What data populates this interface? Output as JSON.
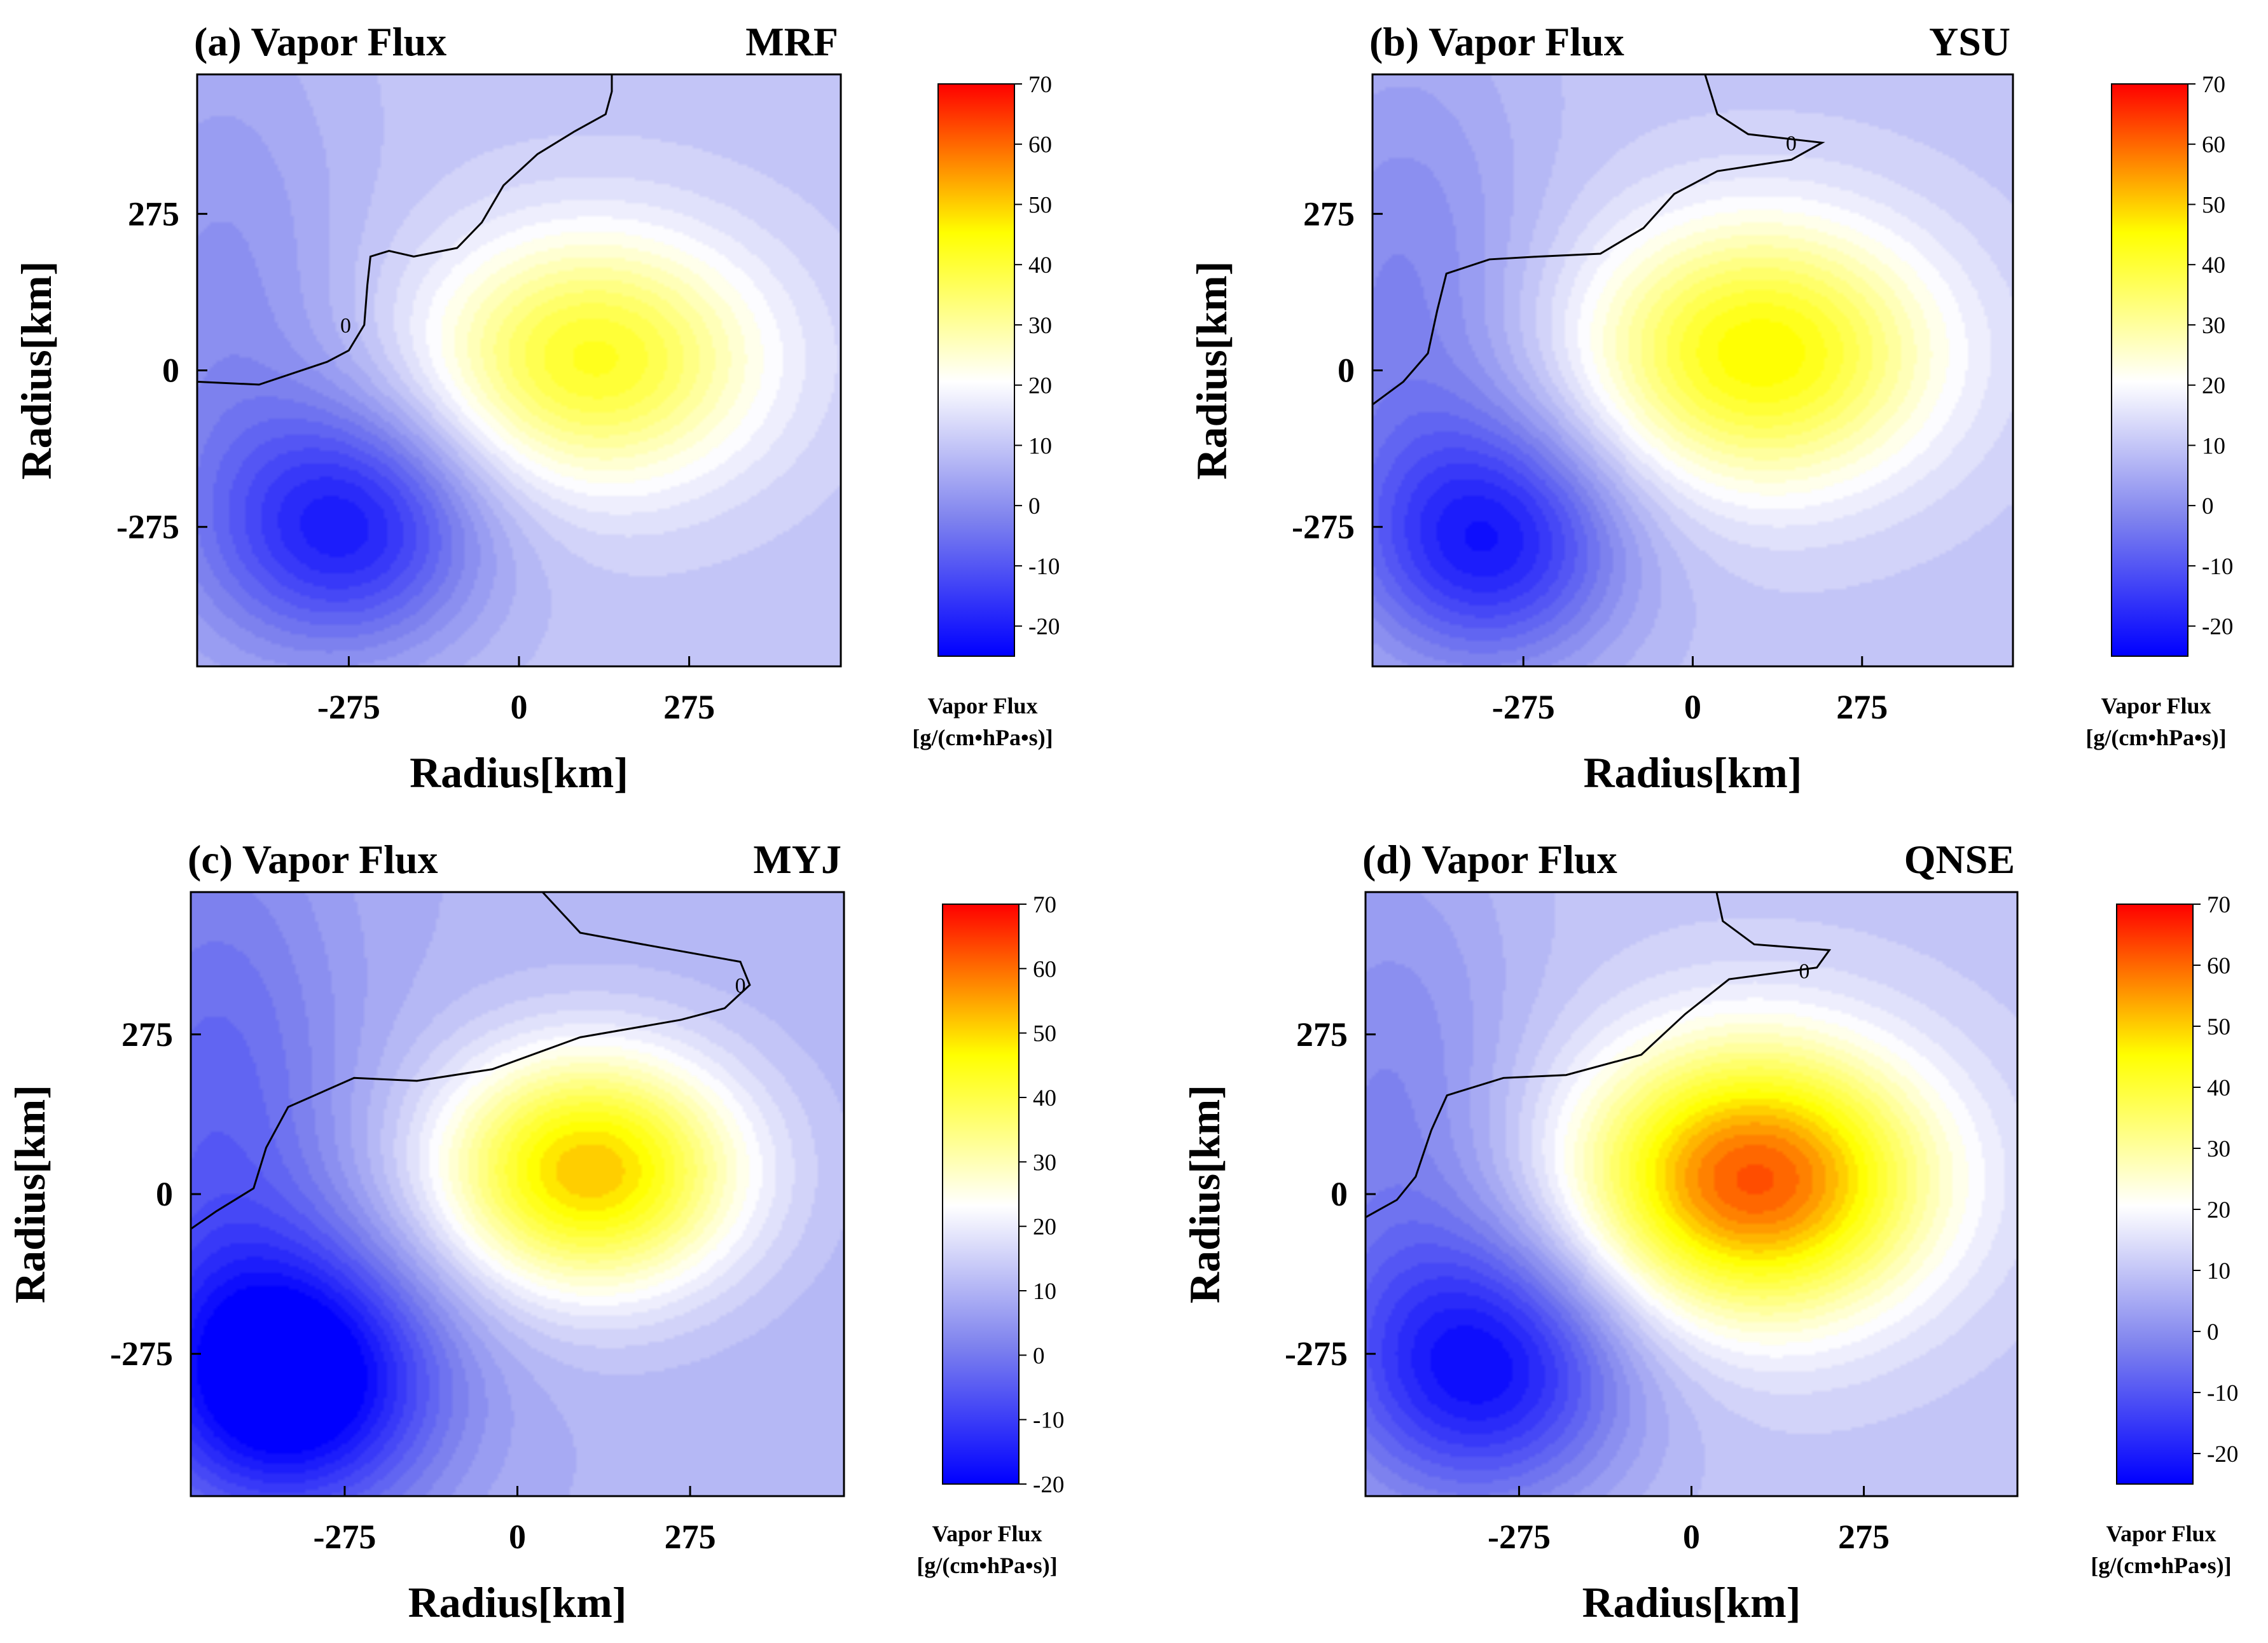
{
  "chart_data": [
    {
      "type": "heatmap",
      "title": "(a) Vapor Flux",
      "scheme": "MRF",
      "xlabel": "Radius[km]",
      "ylabel": "Radius[km]",
      "x_ticks": [
        "-275",
        "0",
        "275"
      ],
      "y_ticks": [
        "275",
        "0",
        "-275"
      ],
      "xlim": [
        -520,
        520
      ],
      "ylim": [
        -520,
        520
      ],
      "colorbar": {
        "label": "Vapor Flux",
        "units": "[g/(cm•hPa•s)]",
        "range": [
          -25,
          70
        ],
        "ticks": [
          "70",
          "60",
          "50",
          "40",
          "30",
          "20",
          "10",
          "0",
          "-10",
          "-20"
        ]
      },
      "contour_label": "0",
      "zero_contour": [
        [
          20,
          -520
        ],
        [
          25,
          -420
        ],
        [
          -15,
          -310
        ],
        [
          -35,
          -275
        ],
        [
          -80,
          -250
        ],
        [
          -150,
          -245
        ],
        [
          -200,
          -240
        ],
        [
          -210,
          -210
        ],
        [
          -200,
          -170
        ],
        [
          -215,
          -100
        ],
        [
          -260,
          -60
        ],
        [
          -325,
          -25
        ],
        [
          -380,
          30
        ],
        [
          -420,
          90
        ],
        [
          -450,
          140
        ],
        [
          -490,
          150
        ],
        [
          -520,
          150
        ]
      ],
      "contour_label_pos": [
        -80,
        -280
      ],
      "fields": [
        {
          "x": 120,
          "y": 20,
          "amp": 32,
          "sx": 190,
          "sy": 155
        },
        {
          "x": -270,
          "y": -275,
          "amp": -28,
          "sx": 150,
          "sy": 150
        },
        {
          "x": -480,
          "y": 60,
          "amp": -10,
          "sx": 150,
          "sy": 400
        }
      ],
      "base": 10,
      "extra_lines": []
    },
    {
      "type": "heatmap",
      "title": "(b) Vapor Flux",
      "scheme": "YSU",
      "xlabel": "Radius[km]",
      "ylabel": "Radius[km]",
      "x_ticks": [
        "-275",
        "0",
        "275"
      ],
      "y_ticks": [
        "275",
        "0",
        "-275"
      ],
      "xlim": [
        -520,
        520
      ],
      "ylim": [
        -520,
        520
      ],
      "colorbar": {
        "label": "Vapor Flux",
        "units": "[g/(cm•hPa•s)]",
        "range": [
          -25,
          70
        ],
        "ticks": [
          "70",
          "60",
          "50",
          "40",
          "30",
          "20",
          "10",
          "0",
          "-10",
          "-20"
        ]
      },
      "contour_label": "0",
      "zero_contour": [
        [
          60,
          -520
        ],
        [
          20,
          -470
        ],
        [
          -30,
          -430
        ],
        [
          -105,
          -415
        ],
        [
          -170,
          -400
        ],
        [
          -195,
          -330
        ],
        [
          -200,
          -250
        ],
        [
          -205,
          -150
        ],
        [
          -250,
          -80
        ],
        [
          -310,
          -30
        ],
        [
          -350,
          40
        ],
        [
          -370,
          160
        ],
        [
          -400,
          210
        ],
        [
          -415,
          90
        ],
        [
          -450,
          40
        ],
        [
          -520,
          20
        ]
      ],
      "contour_label_pos": [
        -400,
        160
      ],
      "fields": [
        {
          "x": 110,
          "y": 30,
          "amp": 36,
          "sx": 200,
          "sy": 165
        },
        {
          "x": -320,
          "y": -300,
          "amp": -28,
          "sx": 150,
          "sy": 150
        },
        {
          "x": -470,
          "y": 100,
          "amp": -12,
          "sx": 150,
          "sy": 350
        }
      ],
      "base": 10,
      "extra_lines": []
    },
    {
      "type": "heatmap",
      "title": "(c) Vapor Flux",
      "scheme": "MYJ",
      "xlabel": "Radius[km]",
      "ylabel": "Radius[km]",
      "x_ticks": [
        "-275",
        "0",
        "275"
      ],
      "y_ticks": [
        "275",
        "0",
        "-275"
      ],
      "xlim": [
        -520,
        520
      ],
      "ylim": [
        -520,
        520
      ],
      "colorbar": {
        "label": "Vapor Flux",
        "units": "[g/(cm•hPa•s)]",
        "range": [
          -20,
          70
        ],
        "ticks": [
          "70",
          "60",
          "50",
          "40",
          "30",
          "20",
          "10",
          "0",
          "-10",
          "-20"
        ]
      },
      "contour_label": "0",
      "zero_contour": [
        [
          60,
          -520
        ],
        [
          30,
          -480
        ],
        [
          -10,
          -420
        ],
        [
          -80,
          -400
        ],
        [
          -150,
          -365
        ],
        [
          -200,
          -260
        ],
        [
          -195,
          -160
        ],
        [
          -215,
          -40
        ],
        [
          -270,
          100
        ],
        [
          -300,
          260
        ],
        [
          -320,
          330
        ],
        [
          -360,
          370
        ],
        [
          -400,
          355
        ],
        [
          -430,
          200
        ],
        [
          -450,
          100
        ],
        [
          -520,
          40
        ]
      ],
      "contour_label_pos": [
        -360,
        355
      ],
      "fields": [
        {
          "x": 115,
          "y": 40,
          "amp": 42,
          "sx": 170,
          "sy": 145
        },
        {
          "x": -350,
          "y": -320,
          "amp": -34,
          "sx": 160,
          "sy": 160
        },
        {
          "x": -480,
          "y": 100,
          "amp": -14,
          "sx": 150,
          "sy": 400
        }
      ],
      "base": 10,
      "extra_lines": []
    },
    {
      "type": "heatmap",
      "title": "(d) Vapor Flux",
      "scheme": "QNSE",
      "xlabel": "Radius[km]",
      "ylabel": "Radius[km]",
      "x_ticks": [
        "-275",
        "0",
        "275"
      ],
      "y_ticks": [
        "275",
        "0",
        "-275"
      ],
      "xlim": [
        -520,
        520
      ],
      "ylim": [
        -520,
        520
      ],
      "colorbar": {
        "label": "Vapor Flux",
        "units": "[g/(cm•hPa•s)]",
        "range": [
          -25,
          70
        ],
        "ticks": [
          "70",
          "60",
          "50",
          "40",
          "30",
          "20",
          "10",
          "0",
          "-10",
          "-20"
        ]
      },
      "contour_label": "0",
      "zero_contour": [
        [
          40,
          -520
        ],
        [
          10,
          -470
        ],
        [
          -30,
          -440
        ],
        [
          -110,
          -415
        ],
        [
          -170,
          -390
        ],
        [
          -200,
          -300
        ],
        [
          -205,
          -200
        ],
        [
          -240,
          -80
        ],
        [
          -310,
          -10
        ],
        [
          -370,
          60
        ],
        [
          -390,
          200
        ],
        [
          -420,
          220
        ],
        [
          -430,
          100
        ],
        [
          -470,
          50
        ],
        [
          -520,
          40
        ]
      ],
      "contour_label_pos": [
        -385,
        180
      ],
      "fields": [
        {
          "x": 100,
          "y": 25,
          "amp": 52,
          "sx": 195,
          "sy": 165
        },
        {
          "x": -320,
          "y": -300,
          "amp": -30,
          "sx": 160,
          "sy": 160
        },
        {
          "x": -480,
          "y": 100,
          "amp": -12,
          "sx": 150,
          "sy": 380
        }
      ],
      "base": 10,
      "extra_lines": []
    }
  ],
  "colors": {
    "min": "#0000ff",
    "low": "#7f83ee",
    "neutral": "#ffffff",
    "mid": "#ffff00",
    "high": "#ff0000"
  }
}
